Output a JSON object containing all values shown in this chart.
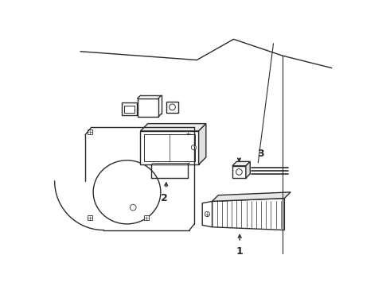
{
  "bg_color": "#ffffff",
  "line_color": "#2a2a2a",
  "fig_width": 4.9,
  "fig_height": 3.6,
  "dpi": 100,
  "label1": "1",
  "label2": "2",
  "label3": "3",
  "panel_bg": "#f5f5f5"
}
